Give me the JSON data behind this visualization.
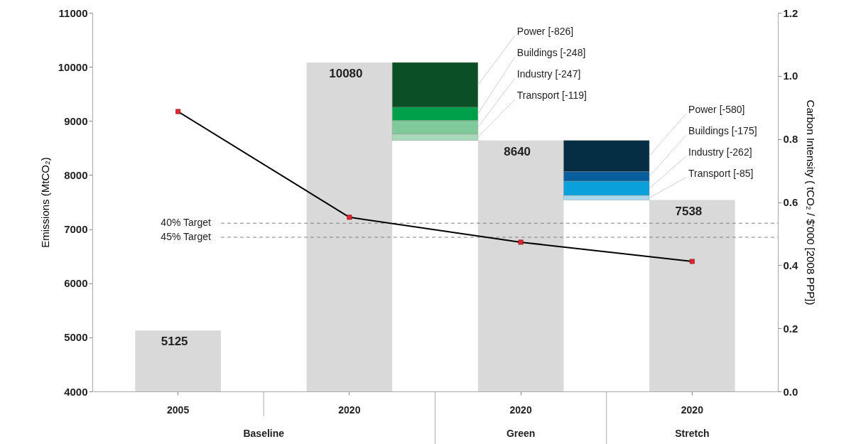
{
  "chart_data": {
    "type": "bar",
    "ylabel": "Emissions (MtCO₂)",
    "y2label": "Carbon Intensity (  tCO₂ / $'000 [2008 PPP])",
    "categories": [
      "2005",
      null,
      "2020",
      null,
      "2020",
      null,
      "2020"
    ],
    "ylim": [
      4000,
      11000
    ],
    "yticks": [
      4000,
      5000,
      6000,
      7000,
      8000,
      9000,
      10000,
      11000
    ],
    "y2lim": [
      0,
      1.2
    ],
    "y2ticks": [
      {
        "value": 0,
        "label": "0.0"
      },
      {
        "value": 0.2,
        "label": "0.2"
      },
      {
        "value": 0.4,
        "label": "0.4"
      },
      {
        "value": 0.6,
        "label": "0.6"
      },
      {
        "value": 0.8,
        "label": "0.8"
      },
      {
        "value": 1,
        "label": "1.0"
      },
      {
        "value": 1.2,
        "label": "1.2"
      }
    ],
    "grid": false,
    "series": [
      {
        "color": "#d9d9d9",
        "values": [
          5125,
          null,
          10080,
          null,
          8640,
          null,
          7538
        ],
        "value_labels": [
          "5125",
          null,
          "10080",
          null,
          "8640",
          null,
          "7538"
        ]
      },
      {
        "type": "bar",
        "name": "Power [-826]",
        "color": "#0b4f27",
        "values": [
          null,
          null,
          null,
          -826,
          null,
          null,
          null
        ],
        "base": [
          null,
          null,
          null,
          10080,
          null,
          null,
          null
        ]
      },
      {
        "type": "bar",
        "name": "Buildings [-248]",
        "color": "#00a04a",
        "values": [
          null,
          null,
          null,
          -248,
          null,
          null,
          null
        ],
        "base": [
          null,
          null,
          null,
          9254,
          null,
          null,
          null
        ]
      },
      {
        "type": "bar",
        "name": "Industry [-247]",
        "color": "#7fc99b",
        "values": [
          null,
          null,
          null,
          -247,
          null,
          null,
          null
        ],
        "base": [
          null,
          null,
          null,
          9006,
          null,
          null,
          null
        ]
      },
      {
        "type": "bar",
        "name": "Transport [-119]",
        "color": "#a8d9b8",
        "values": [
          null,
          null,
          null,
          -119,
          null,
          null,
          null
        ],
        "base": [
          null,
          null,
          null,
          8759,
          null,
          null,
          null
        ]
      },
      {
        "type": "bar",
        "name": "Power [-580]",
        "color": "#052e44",
        "values": [
          null,
          null,
          null,
          null,
          null,
          -580,
          null
        ],
        "base": [
          null,
          null,
          null,
          null,
          null,
          8640,
          null
        ]
      },
      {
        "type": "bar",
        "name": "Buildings [-175]",
        "color": "#075e9c",
        "values": [
          null,
          null,
          null,
          null,
          null,
          -175,
          null
        ],
        "base": [
          null,
          null,
          null,
          null,
          null,
          8060,
          null
        ]
      },
      {
        "type": "bar",
        "name": "Industry [-262]",
        "color": "#0aa0dc",
        "values": [
          null,
          null,
          null,
          null,
          null,
          -262,
          null
        ],
        "base": [
          null,
          null,
          null,
          null,
          null,
          7885,
          null
        ]
      },
      {
        "type": "bar",
        "name": "Transport [-85]",
        "color": "#a9d8ea",
        "values": [
          null,
          null,
          null,
          null,
          null,
          -85,
          null
        ],
        "base": [
          null,
          null,
          null,
          null,
          null,
          7623,
          null
        ]
      },
      {
        "type": "line",
        "axis": "y2",
        "color": "#000000",
        "colors": [
          "#e3262d",
          null,
          "#e3262d",
          null,
          "#e3262d",
          null,
          "#e3262d"
        ],
        "marker": "square",
        "values": [
          0.887,
          null,
          0.552,
          null,
          0.473,
          null,
          0.412
        ]
      }
    ],
    "ref_lines": [
      {
        "axis": "y",
        "value": 7110,
        "label": "40% Target",
        "color": "#808080",
        "line_style": "dashed"
      },
      {
        "axis": "y",
        "value": 6850,
        "label": "45% Target",
        "color": "#808080",
        "line_style": "dashed"
      }
    ],
    "annotations": [
      "Baseline",
      "Green",
      "Stretch"
    ]
  }
}
